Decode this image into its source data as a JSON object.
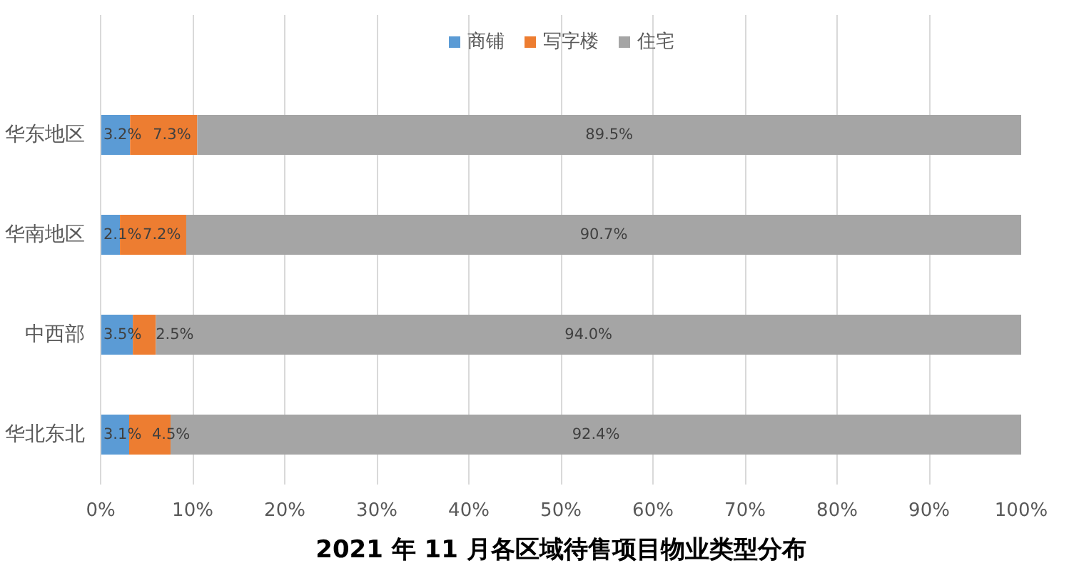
{
  "chart_data": {
    "type": "bar",
    "orientation": "horizontal",
    "stacked": true,
    "title": "2021 年 11 月各区域待售项目物业类型分布",
    "categories": [
      "华东地区",
      "华南地区",
      "中西部",
      "华北东北"
    ],
    "series": [
      {
        "name": "商铺",
        "color": "#5b9bd5",
        "values": [
          3.2,
          2.1,
          3.5,
          3.1
        ],
        "value_labels": [
          "3.2%",
          "2.1%",
          "3.5%",
          "3.1%"
        ]
      },
      {
        "name": "写字楼",
        "color": "#ed7d31",
        "values": [
          7.3,
          7.2,
          2.5,
          4.5
        ],
        "value_labels": [
          "7.3%",
          "7.2%",
          "2.5%",
          "4.5%"
        ]
      },
      {
        "name": "住宅",
        "color": "#a5a5a5",
        "values": [
          89.5,
          90.7,
          94.0,
          92.4
        ],
        "value_labels": [
          "89.5%",
          "90.7%",
          "94.0%",
          "92.4%"
        ]
      }
    ],
    "xlim": [
      0,
      100
    ],
    "xticks": [
      {
        "value": 0,
        "label": "0%"
      },
      {
        "value": 10,
        "label": "10%"
      },
      {
        "value": 20,
        "label": "20%"
      },
      {
        "value": 30,
        "label": "30%"
      },
      {
        "value": 40,
        "label": "40%"
      },
      {
        "value": 50,
        "label": "50%"
      },
      {
        "value": 60,
        "label": "60%"
      },
      {
        "value": 70,
        "label": "70%"
      },
      {
        "value": 80,
        "label": "80%"
      },
      {
        "value": 90,
        "label": "90%"
      },
      {
        "value": 100,
        "label": "100%"
      }
    ],
    "grid": "x",
    "legend": "top"
  }
}
